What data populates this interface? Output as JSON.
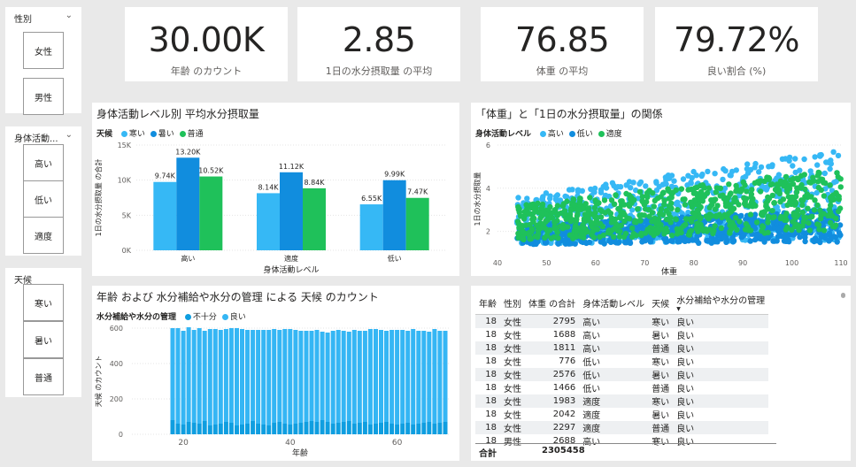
{
  "colors": {
    "low_blue": "#36b8f5",
    "high_blue": "#118dde",
    "green": "#1fc15a",
    "bar_dark": "#0f9ee0",
    "bar_light": "#35b6f4"
  },
  "slicers": [
    {
      "title": "性別",
      "items": [
        "女性",
        "男性"
      ]
    },
    {
      "title": "身体活動...",
      "items": [
        "高い",
        "低い",
        "適度"
      ]
    },
    {
      "title": "天候",
      "items": [
        "寒い",
        "暑い",
        "普通"
      ]
    }
  ],
  "kpis": [
    {
      "value": "30.00K",
      "label": "年齢 のカウント"
    },
    {
      "value": "2.85",
      "label": "1日の水分摂取量 の平均"
    },
    {
      "value": "76.85",
      "label": "体重 の平均"
    },
    {
      "value": "79.72%",
      "label": "良い割合 (%)"
    }
  ],
  "chart_data": [
    {
      "type": "bar",
      "title": "身体活動レベル別 平均水分摂取量",
      "legend_title": "天候",
      "categories": [
        "高い",
        "適度",
        "低い"
      ],
      "series": [
        {
          "name": "寒い",
          "values": [
            9740,
            8140,
            6550
          ],
          "labels": [
            "9.74K",
            "8.14K",
            "6.55K"
          ],
          "color": "#36b8f5"
        },
        {
          "name": "暑い",
          "values": [
            13200,
            11120,
            9990
          ],
          "labels": [
            "13.20K",
            "11.12K",
            "9.99K"
          ],
          "color": "#118dde"
        },
        {
          "name": "普通",
          "values": [
            10520,
            8840,
            7470
          ],
          "labels": [
            "10.52K",
            "8.84K",
            "7.47K"
          ],
          "color": "#1fc15a"
        }
      ],
      "xlabel": "身体活動レベル",
      "ylabel": "1日の水分摂取量 の合計",
      "ylim": [
        0,
        15000
      ],
      "yticks": [
        "0K",
        "5K",
        "10K",
        "15K"
      ],
      "legend_position": "top-left"
    },
    {
      "type": "scatter",
      "title": "「体重」と「1日の水分摂取量」の関係",
      "legend_title": "身体活動レベル",
      "series": [
        {
          "name": "高い",
          "color": "#36b8f5",
          "band": {
            "x": [
              44,
              110
            ],
            "low_start": 1.4,
            "low_end": 1.6,
            "high_start": 3.6,
            "high_end": 5.8
          }
        },
        {
          "name": "低い",
          "color": "#118dde",
          "band": {
            "x": [
              44,
              110
            ],
            "low_start": 1.4,
            "low_end": 1.5,
            "high_start": 2.3,
            "high_end": 3.0
          }
        },
        {
          "name": "適度",
          "color": "#1fc15a",
          "band": {
            "x": [
              44,
              110
            ],
            "low_start": 1.6,
            "low_end": 2.0,
            "high_start": 3.2,
            "high_end": 4.9
          }
        }
      ],
      "xlabel": "体重",
      "ylabel": "1日の水分摂取量",
      "xlim": [
        40,
        110
      ],
      "ylim": [
        1,
        6
      ],
      "xticks": [
        "40",
        "50",
        "60",
        "70",
        "80",
        "90",
        "100",
        "110"
      ],
      "yticks": [
        "2",
        "4",
        "6"
      ],
      "legend_position": "top-left"
    },
    {
      "type": "bar",
      "stacked": true,
      "title": "年齢 および 水分補給や水分の管理 による 天候 のカウント",
      "legend_title": "水分補給や水分の管理",
      "x_start": 18,
      "x_end": 69,
      "series": [
        {
          "name": "不十分",
          "color": "#0f9ee0",
          "values": [
            80,
            60,
            55,
            70,
            65,
            60,
            75,
            50,
            55,
            60,
            70,
            65,
            50,
            55,
            60,
            75,
            60,
            55,
            50,
            65,
            70,
            60,
            55,
            60,
            65,
            70,
            75,
            70,
            80,
            70,
            60,
            65,
            70,
            75,
            60,
            65,
            70,
            55,
            60,
            65,
            70,
            60,
            55,
            60,
            65,
            55,
            60,
            65,
            70,
            60,
            65,
            70
          ]
        },
        {
          "name": "良い",
          "color": "#35b6f4",
          "values": [
            520,
            540,
            530,
            535,
            525,
            540,
            510,
            545,
            540,
            530,
            525,
            535,
            550,
            540,
            530,
            515,
            530,
            535,
            540,
            530,
            520,
            535,
            540,
            530,
            520,
            515,
            510,
            520,
            500,
            505,
            525,
            525,
            515,
            505,
            530,
            520,
            515,
            540,
            535,
            525,
            515,
            530,
            535,
            530,
            520,
            540,
            525,
            520,
            510,
            535,
            520,
            515
          ]
        }
      ],
      "xlabel": "年齢",
      "ylabel": "天候 のカウント",
      "ylim": [
        0,
        600
      ],
      "yticks": [
        "0",
        "200",
        "400",
        "600"
      ],
      "xticks": [
        "20",
        "40",
        "60"
      ],
      "legend_position": "top-left"
    }
  ],
  "table": {
    "columns": [
      "年齢",
      "性別",
      "体重 の合計",
      "身体活動レベル",
      "天候",
      "水分補給や水分の管理"
    ],
    "rows": [
      [
        "18",
        "女性",
        "2795",
        "高い",
        "寒い",
        "良い"
      ],
      [
        "18",
        "女性",
        "1688",
        "高い",
        "暑い",
        "良い"
      ],
      [
        "18",
        "女性",
        "1811",
        "高い",
        "普通",
        "良い"
      ],
      [
        "18",
        "女性",
        "776",
        "低い",
        "寒い",
        "良い"
      ],
      [
        "18",
        "女性",
        "2576",
        "低い",
        "暑い",
        "良い"
      ],
      [
        "18",
        "女性",
        "1466",
        "低い",
        "普通",
        "良い"
      ],
      [
        "18",
        "女性",
        "1983",
        "適度",
        "寒い",
        "良い"
      ],
      [
        "18",
        "女性",
        "2042",
        "適度",
        "暑い",
        "良い"
      ],
      [
        "18",
        "女性",
        "2297",
        "適度",
        "普通",
        "良い"
      ],
      [
        "18",
        "男性",
        "2688",
        "高い",
        "寒い",
        "良い"
      ]
    ],
    "total_label": "合計",
    "total_value": "2305458"
  }
}
